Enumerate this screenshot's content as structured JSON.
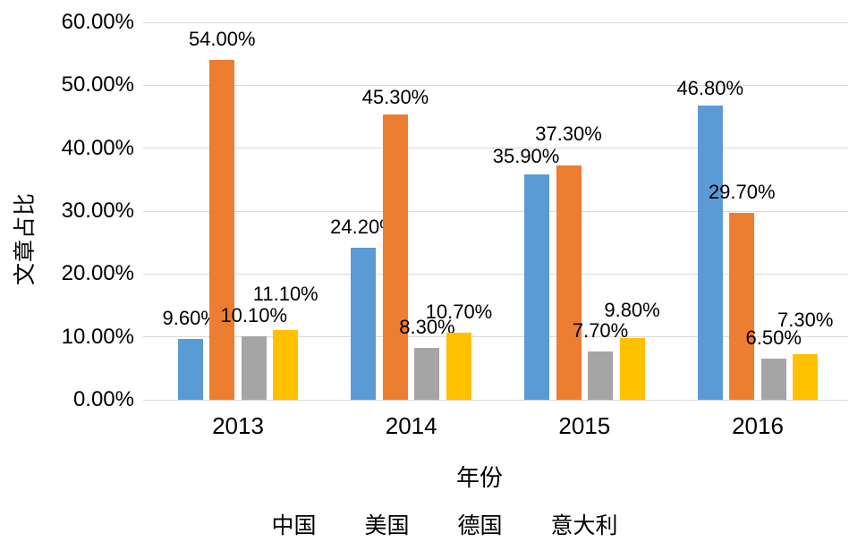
{
  "chart_data": {
    "type": "bar",
    "title": "",
    "xlabel": "年份",
    "ylabel": "文章占比",
    "categories": [
      "2013",
      "2014",
      "2015",
      "2016"
    ],
    "series": [
      {
        "name": "中国",
        "color": "#5B9BD5",
        "values": [
          9.6,
          24.2,
          35.9,
          46.8
        ],
        "labels": [
          "9.60%",
          "24.20%",
          "35.90%",
          "46.80%"
        ]
      },
      {
        "name": "美国",
        "color": "#ED7D31",
        "values": [
          54.0,
          45.3,
          37.3,
          29.7
        ],
        "labels": [
          "54.00%",
          "45.30%",
          "37.30%",
          "29.70%"
        ]
      },
      {
        "name": "德国",
        "color": "#A5A5A5",
        "values": [
          10.1,
          8.3,
          7.7,
          6.5
        ],
        "labels": [
          "10.10%",
          "8.30%",
          "7.70%",
          "6.50%"
        ]
      },
      {
        "name": "意大利",
        "color": "#FFC000",
        "values": [
          11.1,
          10.7,
          9.8,
          7.3
        ],
        "labels": [
          "11.10%",
          "10.70%",
          "9.80%",
          "7.30%"
        ]
      }
    ],
    "y_ticks": [
      "0.00%",
      "10.00%",
      "20.00%",
      "30.00%",
      "40.00%",
      "50.00%",
      "60.00%"
    ],
    "ylim": [
      0,
      60
    ],
    "grid": true,
    "legend_position": "bottom",
    "gridline_color": "#D9D9D9",
    "text_color": "#000000",
    "background_color": "#FFFFFF"
  }
}
